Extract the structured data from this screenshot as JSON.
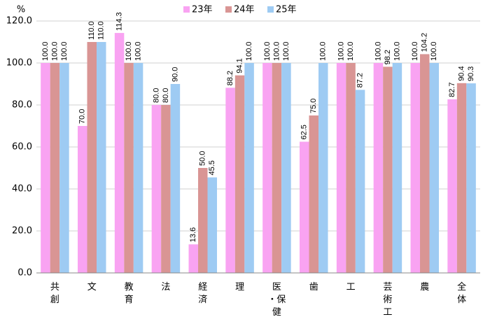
{
  "chart_data": {
    "type": "bar",
    "y_label": "%",
    "categories": [
      "共創",
      "文",
      "教育",
      "法",
      "経済",
      "理",
      "医・保健",
      "歯",
      "工",
      "芸術工",
      "農",
      "全体"
    ],
    "series": [
      {
        "name": "23年",
        "color": "#f9a3f2",
        "values": [
          100,
          70,
          114.3,
          80,
          13.6,
          88.2,
          100,
          62.5,
          100,
          100,
          100,
          82.7
        ],
        "value_labels": [
          "100.0",
          "70.0",
          "114.3",
          "80.0",
          "13.6",
          "88.2",
          "100.0",
          "62.5",
          "100.0",
          "100.0",
          "100.0",
          "82.7"
        ]
      },
      {
        "name": "24年",
        "color": "#d99594",
        "values": [
          100,
          110,
          100,
          80,
          50,
          94.1,
          100,
          75,
          100,
          98.2,
          104.2,
          90.4
        ],
        "value_labels": [
          "100.0",
          "110.0",
          "100.0",
          "80.0",
          "50.0",
          "94.1",
          "100.0",
          "75.0",
          "100.0",
          "98.2",
          "104.2",
          "90.4"
        ]
      },
      {
        "name": "25年",
        "color": "#9ecbf3",
        "values": [
          100,
          110,
          100,
          90,
          45.5,
          100,
          100,
          100,
          87.2,
          100,
          100,
          90.3
        ],
        "value_labels": [
          "100.0",
          "110.0",
          "100.0",
          "90.0",
          "45.5",
          "100.0",
          "100.0",
          "100.0",
          "87.2",
          "100.0",
          "100.0",
          "90.3"
        ]
      }
    ],
    "ylim": [
      0,
      120
    ],
    "yticks": [
      {
        "value": 0,
        "label": "0.0"
      },
      {
        "value": 20,
        "label": "20.0"
      },
      {
        "value": 40,
        "label": "40.0"
      },
      {
        "value": 60,
        "label": "60.0"
      },
      {
        "value": 80,
        "label": "80.0"
      },
      {
        "value": 100,
        "label": "100.0"
      },
      {
        "value": 120,
        "label": "120.0"
      }
    ],
    "grid": true,
    "legend": "top"
  }
}
